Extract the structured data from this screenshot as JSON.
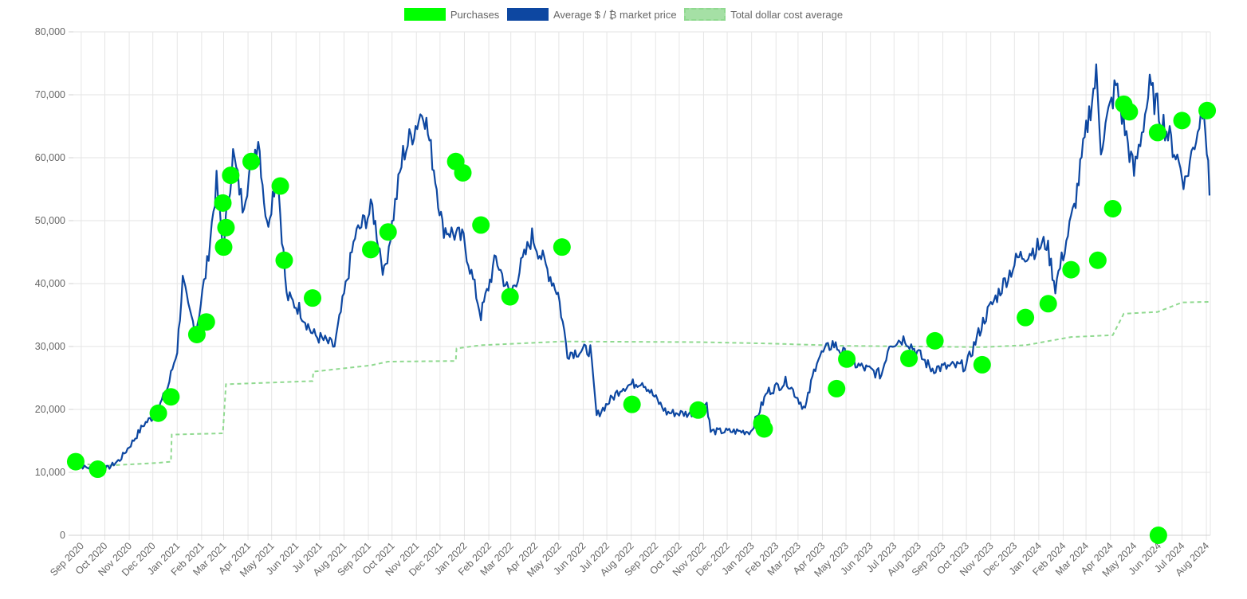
{
  "chart_data": {
    "type": "line",
    "title": "",
    "xlabel": "",
    "ylabel": "",
    "legend_position": "top-center",
    "grid": true,
    "ylim": [
      0,
      80000
    ],
    "xlim": [
      "2020-08-22",
      "2024-08-06"
    ],
    "y_ticks": [
      "0",
      "10,000",
      "20,000",
      "30,000",
      "40,000",
      "50,000",
      "60,000",
      "70,000",
      "80,000"
    ],
    "x_tick_labels": [
      "Sep 2020",
      "Oct 2020",
      "Nov 2020",
      "Dec 2020",
      "Jan 2021",
      "Feb 2021",
      "Mar 2021",
      "Apr 2021",
      "May 2021",
      "Jun 2021",
      "Jul 2021",
      "Aug 2021",
      "Sep 2021",
      "Oct 2021",
      "Nov 2021",
      "Dec 2021",
      "Jan 2022",
      "Feb 2022",
      "Mar 2022",
      "Apr 2022",
      "May 2022",
      "Jun 2022",
      "Jul 2022",
      "Aug 2022",
      "Sep 2022",
      "Oct 2022",
      "Nov 2022",
      "Dec 2022",
      "Jan 2023",
      "Feb 2023",
      "Mar 2023",
      "Apr 2023",
      "May 2023",
      "Jun 2023",
      "Jul 2023",
      "Aug 2023",
      "Sep 2023",
      "Oct 2023",
      "Nov 2023",
      "Dec 2023",
      "Jan 2024",
      "Feb 2024",
      "Mar 2024",
      "Apr 2024",
      "May 2024",
      "Jun 2024",
      "Jul 2024",
      "Aug 2024"
    ],
    "x_tick_dates": [
      "2020-09-01",
      "2020-10-01",
      "2020-11-01",
      "2020-12-01",
      "2021-01-01",
      "2021-02-01",
      "2021-03-01",
      "2021-04-01",
      "2021-05-01",
      "2021-06-01",
      "2021-07-01",
      "2021-08-01",
      "2021-09-01",
      "2021-10-01",
      "2021-11-01",
      "2021-12-01",
      "2022-01-01",
      "2022-02-01",
      "2022-03-01",
      "2022-04-01",
      "2022-05-01",
      "2022-06-01",
      "2022-07-01",
      "2022-08-01",
      "2022-09-01",
      "2022-10-01",
      "2022-11-01",
      "2022-12-01",
      "2023-01-01",
      "2023-02-01",
      "2023-03-01",
      "2023-04-01",
      "2023-05-01",
      "2023-06-01",
      "2023-07-01",
      "2023-08-01",
      "2023-09-01",
      "2023-10-01",
      "2023-11-01",
      "2023-12-01",
      "2024-01-01",
      "2024-02-01",
      "2024-03-01",
      "2024-04-01",
      "2024-05-01",
      "2024-06-01",
      "2024-07-01",
      "2024-08-01"
    ],
    "series": [
      {
        "name": "Purchases",
        "type": "scatter",
        "color": "#00ff00",
        "points": [
          {
            "x": "2020-08-25",
            "y": 11700
          },
          {
            "x": "2020-09-22",
            "y": 10500
          },
          {
            "x": "2020-12-08",
            "y": 19400
          },
          {
            "x": "2020-12-24",
            "y": 22000
          },
          {
            "x": "2021-01-26",
            "y": 31900
          },
          {
            "x": "2021-02-07",
            "y": 33900
          },
          {
            "x": "2021-02-28",
            "y": 52800
          },
          {
            "x": "2021-03-01",
            "y": 45800
          },
          {
            "x": "2021-03-04",
            "y": 48900
          },
          {
            "x": "2021-03-10",
            "y": 57200
          },
          {
            "x": "2021-04-05",
            "y": 59400
          },
          {
            "x": "2021-05-12",
            "y": 55500
          },
          {
            "x": "2021-05-17",
            "y": 43700
          },
          {
            "x": "2021-06-22",
            "y": 37700
          },
          {
            "x": "2021-09-04",
            "y": 45400
          },
          {
            "x": "2021-09-26",
            "y": 48200
          },
          {
            "x": "2021-12-21",
            "y": 59400
          },
          {
            "x": "2021-12-30",
            "y": 57600
          },
          {
            "x": "2022-01-22",
            "y": 49300
          },
          {
            "x": "2022-02-28",
            "y": 37900
          },
          {
            "x": "2022-05-05",
            "y": 45800
          },
          {
            "x": "2022-08-02",
            "y": 20800
          },
          {
            "x": "2022-10-25",
            "y": 19900
          },
          {
            "x": "2023-01-14",
            "y": 17800
          },
          {
            "x": "2023-01-17",
            "y": 16900
          },
          {
            "x": "2023-04-19",
            "y": 23300
          },
          {
            "x": "2023-05-02",
            "y": 28000
          },
          {
            "x": "2023-07-20",
            "y": 28100
          },
          {
            "x": "2023-08-22",
            "y": 30900
          },
          {
            "x": "2023-10-21",
            "y": 27100
          },
          {
            "x": "2023-12-15",
            "y": 34600
          },
          {
            "x": "2024-01-13",
            "y": 36800
          },
          {
            "x": "2024-02-11",
            "y": 42200
          },
          {
            "x": "2024-03-16",
            "y": 43700
          },
          {
            "x": "2024-04-04",
            "y": 51900
          },
          {
            "x": "2024-04-18",
            "y": 68500
          },
          {
            "x": "2024-04-25",
            "y": 67300
          },
          {
            "x": "2024-05-31",
            "y": 64000
          },
          {
            "x": "2024-06-01",
            "y": 0
          },
          {
            "x": "2024-07-01",
            "y": 65900
          },
          {
            "x": "2024-08-02",
            "y": 67500
          }
        ]
      },
      {
        "name": "Average $ / ₿ market price",
        "type": "line",
        "color": "#0d47a1",
        "points": [
          {
            "x": "2020-08-22",
            "y": 11600
          },
          {
            "x": "2020-09-05",
            "y": 10800
          },
          {
            "x": "2020-09-20",
            "y": 10700
          },
          {
            "x": "2020-10-05",
            "y": 10700
          },
          {
            "x": "2020-10-20",
            "y": 12000
          },
          {
            "x": "2020-11-05",
            "y": 14800
          },
          {
            "x": "2020-11-20",
            "y": 17700
          },
          {
            "x": "2020-12-05",
            "y": 19200
          },
          {
            "x": "2020-12-20",
            "y": 23500
          },
          {
            "x": "2021-01-01",
            "y": 29500
          },
          {
            "x": "2021-01-08",
            "y": 40500
          },
          {
            "x": "2021-01-15",
            "y": 36000
          },
          {
            "x": "2021-01-25",
            "y": 32500
          },
          {
            "x": "2021-02-08",
            "y": 43000
          },
          {
            "x": "2021-02-20",
            "y": 56000
          },
          {
            "x": "2021-02-28",
            "y": 45500
          },
          {
            "x": "2021-03-13",
            "y": 60500
          },
          {
            "x": "2021-03-25",
            "y": 52500
          },
          {
            "x": "2021-04-14",
            "y": 63500
          },
          {
            "x": "2021-04-25",
            "y": 49000
          },
          {
            "x": "2021-05-08",
            "y": 58000
          },
          {
            "x": "2021-05-20",
            "y": 38000
          },
          {
            "x": "2021-06-05",
            "y": 36000
          },
          {
            "x": "2021-06-22",
            "y": 32000
          },
          {
            "x": "2021-07-20",
            "y": 30000
          },
          {
            "x": "2021-08-15",
            "y": 47500
          },
          {
            "x": "2021-09-06",
            "y": 52000
          },
          {
            "x": "2021-09-21",
            "y": 41500
          },
          {
            "x": "2021-10-15",
            "y": 60500
          },
          {
            "x": "2021-11-10",
            "y": 68000
          },
          {
            "x": "2021-11-25",
            "y": 57000
          },
          {
            "x": "2021-12-04",
            "y": 49000
          },
          {
            "x": "2021-12-31",
            "y": 47000
          },
          {
            "x": "2022-01-22",
            "y": 35000
          },
          {
            "x": "2022-02-10",
            "y": 44000
          },
          {
            "x": "2022-02-28",
            "y": 38000
          },
          {
            "x": "2022-03-28",
            "y": 47500
          },
          {
            "x": "2022-04-30",
            "y": 38500
          },
          {
            "x": "2022-05-12",
            "y": 29000
          },
          {
            "x": "2022-06-10",
            "y": 29500
          },
          {
            "x": "2022-06-18",
            "y": 19000
          },
          {
            "x": "2022-07-20",
            "y": 23500
          },
          {
            "x": "2022-08-15",
            "y": 24500
          },
          {
            "x": "2022-09-15",
            "y": 19500
          },
          {
            "x": "2022-10-15",
            "y": 19300
          },
          {
            "x": "2022-11-05",
            "y": 21000
          },
          {
            "x": "2022-11-10",
            "y": 16500
          },
          {
            "x": "2022-12-31",
            "y": 16500
          },
          {
            "x": "2023-01-21",
            "y": 22800
          },
          {
            "x": "2023-02-15",
            "y": 24500
          },
          {
            "x": "2023-03-10",
            "y": 20000
          },
          {
            "x": "2023-03-25",
            "y": 28000
          },
          {
            "x": "2023-04-14",
            "y": 30500
          },
          {
            "x": "2023-05-15",
            "y": 27000
          },
          {
            "x": "2023-06-15",
            "y": 25500
          },
          {
            "x": "2023-06-25",
            "y": 30500
          },
          {
            "x": "2023-07-15",
            "y": 31300
          },
          {
            "x": "2023-08-17",
            "y": 26500
          },
          {
            "x": "2023-10-01",
            "y": 27000
          },
          {
            "x": "2023-10-24",
            "y": 34500
          },
          {
            "x": "2023-12-05",
            "y": 44000
          },
          {
            "x": "2024-01-11",
            "y": 46500
          },
          {
            "x": "2024-01-22",
            "y": 39500
          },
          {
            "x": "2024-02-15",
            "y": 52000
          },
          {
            "x": "2024-03-05",
            "y": 67000
          },
          {
            "x": "2024-03-14",
            "y": 73000
          },
          {
            "x": "2024-03-20",
            "y": 62000
          },
          {
            "x": "2024-04-08",
            "y": 71500
          },
          {
            "x": "2024-05-01",
            "y": 57500
          },
          {
            "x": "2024-05-21",
            "y": 71000
          },
          {
            "x": "2024-06-25",
            "y": 60000
          },
          {
            "x": "2024-07-05",
            "y": 56000
          },
          {
            "x": "2024-07-29",
            "y": 69000
          },
          {
            "x": "2024-08-05",
            "y": 54000
          }
        ]
      },
      {
        "name": "Total dollar cost average",
        "type": "line",
        "dash": true,
        "color": "#8fd98f",
        "points": [
          {
            "x": "2020-08-22",
            "y": 11700
          },
          {
            "x": "2020-09-22",
            "y": 11000
          },
          {
            "x": "2020-12-08",
            "y": 11500
          },
          {
            "x": "2020-12-24",
            "y": 11700
          },
          {
            "x": "2020-12-25",
            "y": 16000
          },
          {
            "x": "2021-02-28",
            "y": 16200
          },
          {
            "x": "2021-03-04",
            "y": 24000
          },
          {
            "x": "2021-06-22",
            "y": 24500
          },
          {
            "x": "2021-06-23",
            "y": 26000
          },
          {
            "x": "2021-09-04",
            "y": 27000
          },
          {
            "x": "2021-09-26",
            "y": 27600
          },
          {
            "x": "2021-12-21",
            "y": 27700
          },
          {
            "x": "2021-12-22",
            "y": 29700
          },
          {
            "x": "2022-01-22",
            "y": 30200
          },
          {
            "x": "2022-05-05",
            "y": 30800
          },
          {
            "x": "2022-10-25",
            "y": 30700
          },
          {
            "x": "2023-01-17",
            "y": 30500
          },
          {
            "x": "2023-05-02",
            "y": 30100
          },
          {
            "x": "2023-10-21",
            "y": 29900
          },
          {
            "x": "2023-12-15",
            "y": 30200
          },
          {
            "x": "2024-02-11",
            "y": 31500
          },
          {
            "x": "2024-04-04",
            "y": 31800
          },
          {
            "x": "2024-04-18",
            "y": 35200
          },
          {
            "x": "2024-05-31",
            "y": 35500
          },
          {
            "x": "2024-07-01",
            "y": 37000
          },
          {
            "x": "2024-08-06",
            "y": 37100
          }
        ]
      }
    ]
  }
}
